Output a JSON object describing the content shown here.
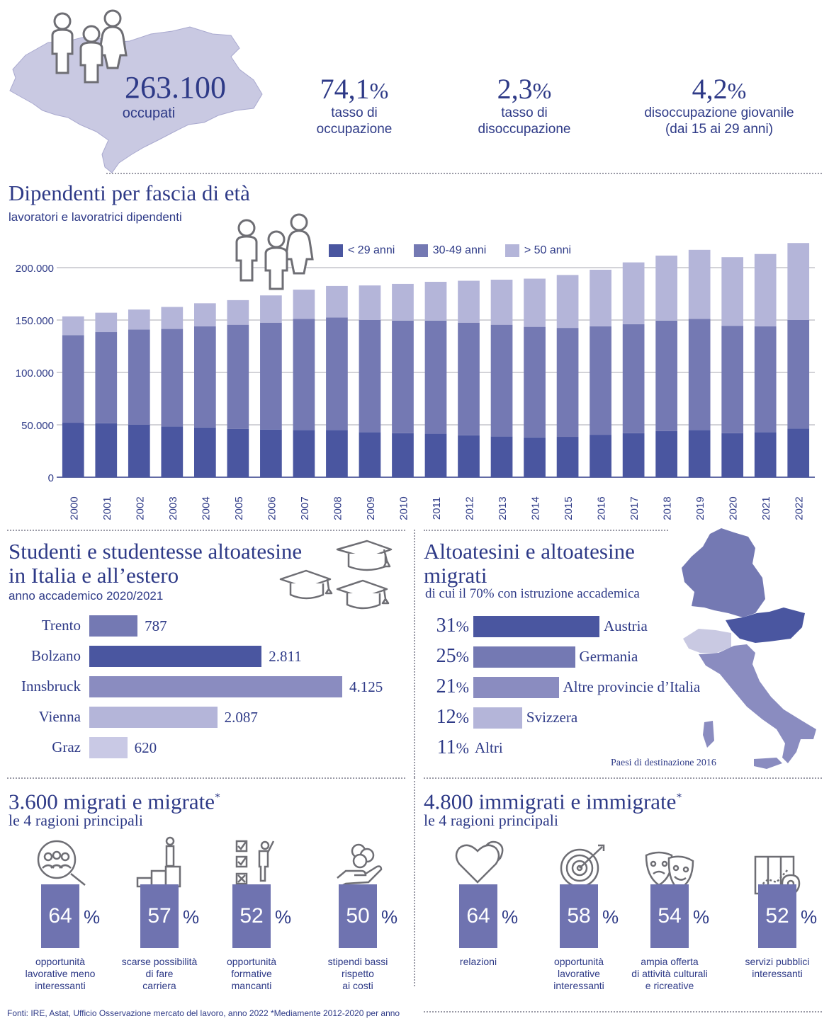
{
  "kpis": {
    "occupati_value": "263.100",
    "occupati_label": "occupati",
    "occupazione_value": "74,1",
    "occupazione_unit": "%",
    "occupazione_label": "tasso di\noccupazione",
    "disoccupazione_value": "2,3",
    "disoccupazione_unit": "%",
    "disoccupazione_label": "tasso di\ndisoccupazione",
    "giovanile_value": "4,2",
    "giovanile_unit": "%",
    "giovanile_label": "disoccupazione giovanile\n(dai 15 ai 29 anni)"
  },
  "section_dipendenti": {
    "title": "Dipendenti per fascia di età",
    "subtitle": "lavoratori e lavoratrici dipendenti"
  },
  "section_studenti": {
    "title_line1": "Studenti e studentesse altoatesine",
    "title_line2": "in Italia e all’estero",
    "subtitle": "anno accademico 2020/2021"
  },
  "section_migrati_dest": {
    "title_line1": "Altoatesini e altoatesine",
    "title_line2": "migrati",
    "subtitle": "di cui il 70% con istruzione accademica",
    "map_caption": "Paesi di destinazione 2016"
  },
  "section_emigrati": {
    "title": "3.600 migrati e migrate",
    "star": "*",
    "subtitle": "le 4 ragioni principali",
    "reasons": [
      {
        "value": "64",
        "unit": "%",
        "caption": "opportunità\nlavorative meno\ninteressanti"
      },
      {
        "value": "57",
        "unit": "%",
        "caption": "scarse possibilità\ndi fare\ncarriera"
      },
      {
        "value": "52",
        "unit": "%",
        "caption": "opportunità\nformative\nmancanti"
      },
      {
        "value": "50",
        "unit": "%",
        "caption": "stipendi bassi\nrispetto\nai costi"
      }
    ]
  },
  "section_immigrati": {
    "title": "4.800 immigrati e immigrate",
    "star": "*",
    "subtitle": "le 4 ragioni principali",
    "reasons": [
      {
        "value": "64",
        "unit": "%",
        "caption": "relazioni"
      },
      {
        "value": "58",
        "unit": "%",
        "caption": "opportunità\nlavorative\ninteressanti"
      },
      {
        "value": "54",
        "unit": "%",
        "caption": "ampia offerta\ndi attività culturali\ne ricreative"
      },
      {
        "value": "52",
        "unit": "%",
        "caption": "servizi pubblici\ninteressanti"
      }
    ]
  },
  "footer": "Fonti: IRE, Astat, Ufficio Osservazione mercato del lavoro, anno 2022  *Mediamente 2012-2020 per anno",
  "colors": {
    "dark": "#4a56a0",
    "mid": "#7479b3",
    "light": "#b4b5d9",
    "lighter": "#c9c9e5",
    "map": "#c9c9e2",
    "text": "#2e3a87"
  },
  "chart_data": [
    {
      "type": "bar",
      "stacked": true,
      "title": "Dipendenti per fascia di età",
      "subtitle": "lavoratori e lavoratrici dipendenti",
      "categories": [
        "2000",
        "2001",
        "2002",
        "2003",
        "2004",
        "2005",
        "2006",
        "2007",
        "2008",
        "2009",
        "2010",
        "2011",
        "2012",
        "2013",
        "2014",
        "2015",
        "2016",
        "2017",
        "2018",
        "2019",
        "2020",
        "2021",
        "2022"
      ],
      "series": [
        {
          "name": "< 29 anni",
          "color": "#4a56a0",
          "values": [
            52000,
            51500,
            50000,
            48500,
            47500,
            46000,
            45500,
            45000,
            45000,
            43000,
            42000,
            41500,
            40000,
            39000,
            38000,
            38500,
            40500,
            42000,
            44000,
            45000,
            42000,
            43000,
            46500
          ]
        },
        {
          "name": "30-49 anni",
          "color": "#7479b3",
          "values": [
            83500,
            87000,
            91000,
            93000,
            96500,
            99500,
            102000,
            106000,
            107500,
            107000,
            107500,
            108000,
            107500,
            106500,
            105500,
            104000,
            103500,
            104000,
            105500,
            106000,
            102500,
            101000,
            103500
          ]
        },
        {
          "name": "> 50 anni",
          "color": "#b4b5d9",
          "values": [
            18000,
            18500,
            19000,
            21000,
            22000,
            23500,
            26000,
            28000,
            30000,
            33000,
            35000,
            37000,
            40000,
            43000,
            46000,
            50500,
            54000,
            59000,
            62000,
            66000,
            65500,
            69000,
            73500
          ]
        }
      ],
      "yticks": [
        "0",
        "50.000",
        "100.000",
        "150.000",
        "200.000"
      ],
      "ylim": [
        0,
        225000
      ],
      "legend_position": "top"
    },
    {
      "type": "bar",
      "orientation": "horizontal",
      "title": "Studenti e studentesse altoatesine in Italia e all’estero",
      "categories": [
        "Trento",
        "Bolzano",
        "Innsbruck",
        "Vienna",
        "Graz"
      ],
      "values": [
        787,
        2811,
        4125,
        2087,
        620
      ],
      "value_labels": [
        "787",
        "2.811",
        "4.125",
        "2.087",
        "620"
      ],
      "colors": [
        "#7479b3",
        "#4a56a0",
        "#8a8cc0",
        "#b4b5d9",
        "#c9c9e5"
      ]
    },
    {
      "type": "bar",
      "orientation": "horizontal",
      "title": "Altoatesini e altoatesine migrati",
      "categories": [
        "Austria",
        "Germania",
        "Altre provincie d’Italia",
        "Svizzera",
        "Altri"
      ],
      "values": [
        31,
        25,
        21,
        12,
        11
      ],
      "value_labels": [
        "31",
        "25",
        "21",
        "12",
        "11"
      ],
      "unit": "%",
      "colors": [
        "#4a56a0",
        "#7479b3",
        "#8a8cc0",
        "#b4b5d9",
        "#ffffff"
      ]
    }
  ]
}
